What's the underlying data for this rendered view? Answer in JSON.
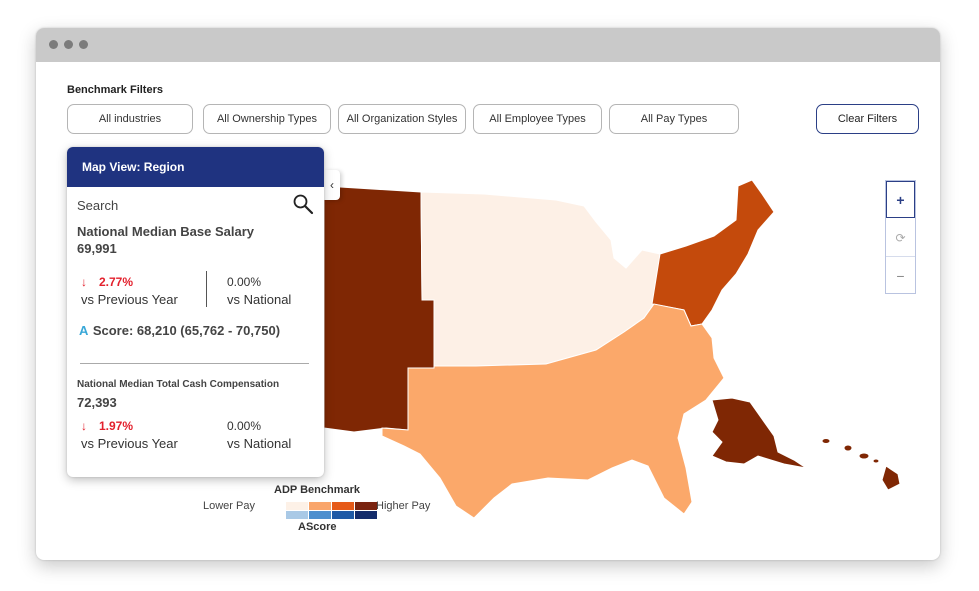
{
  "filters": {
    "title": "Benchmark Filters",
    "buttons": [
      {
        "label": "All industries"
      },
      {
        "label": "All Ownership Types"
      },
      {
        "label": "All Organization Styles"
      },
      {
        "label": "All Employee Types"
      },
      {
        "label": "All Pay Types"
      }
    ],
    "clear_label": "Clear Filters"
  },
  "panel": {
    "header": "Map View: Region",
    "collapse_glyph": "‹",
    "search_label": "Search",
    "base_salary": {
      "label": "National Median Base Salary",
      "value": "69,991",
      "prev_pct": "2.77%",
      "prev_label": "vs Previous Year",
      "nat_pct": "0.00%",
      "nat_label": "vs National",
      "arrow": "↓"
    },
    "ascore": {
      "letter": "A",
      "text": "Score: 68,210 (65,762 - 70,750)"
    },
    "total_cash": {
      "label": "National Median Total Cash Compensation",
      "value": "72,393",
      "prev_pct": "1.97%",
      "prev_label": "vs Previous Year",
      "nat_pct": "0.00%",
      "nat_label": "vs National",
      "arrow": "↓"
    }
  },
  "zoom": {
    "in_glyph": "+",
    "reset_glyph": "⟳",
    "out_glyph": "−"
  },
  "legend": {
    "title": "ADP Benchmark",
    "lower": "Lower Pay",
    "higher": "Higher Pay",
    "subtitle": "AScore",
    "pay_colors": [
      "#fdf1e7",
      "#f9a56b",
      "#e65a18",
      "#7a2410"
    ],
    "ascore_colors": [
      "#a9c9e6",
      "#4d8fce",
      "#1f5aa6",
      "#132c6b"
    ]
  },
  "map_colors": {
    "west": "#7f2704",
    "midwest": "#fdf0e6",
    "northeast": "#c44a0c",
    "south": "#fba86a",
    "alaska": "#7f2704",
    "hawaii": "#7f2704"
  },
  "icons": {
    "search": "search-icon",
    "zoom_in": "plus-icon",
    "reset": "refresh-icon",
    "zoom_out": "minus-icon",
    "collapse": "chevron-left-icon"
  }
}
